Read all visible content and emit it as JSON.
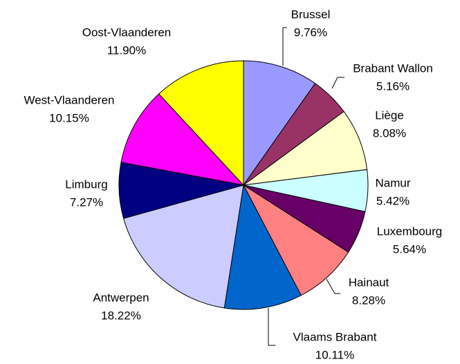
{
  "chart_data": {
    "type": "pie",
    "categories": [
      "Brussel",
      "Brabant Wallon",
      "Liège",
      "Namur",
      "Luxembourg",
      "Hainaut",
      "Vlaams Brabant",
      "Antwerpen",
      "Limburg",
      "West-Vlaanderen",
      "Oost-Vlaanderen"
    ],
    "values": [
      9.76,
      5.16,
      8.08,
      5.42,
      5.64,
      8.28,
      10.11,
      18.22,
      7.27,
      10.15,
      11.9
    ],
    "value_labels": [
      "9.76%",
      "5.16%",
      "8.08%",
      "5.42%",
      "5.64%",
      "8.28%",
      "10.11%",
      "18.22%",
      "7.27%",
      "10.15%",
      "11.90%"
    ],
    "colors": [
      "#9999ff",
      "#993366",
      "#ffffcc",
      "#ccffff",
      "#660066",
      "#ff8080",
      "#0066cc",
      "#ccccff",
      "#000080",
      "#ff00ff",
      "#ffff00"
    ]
  }
}
